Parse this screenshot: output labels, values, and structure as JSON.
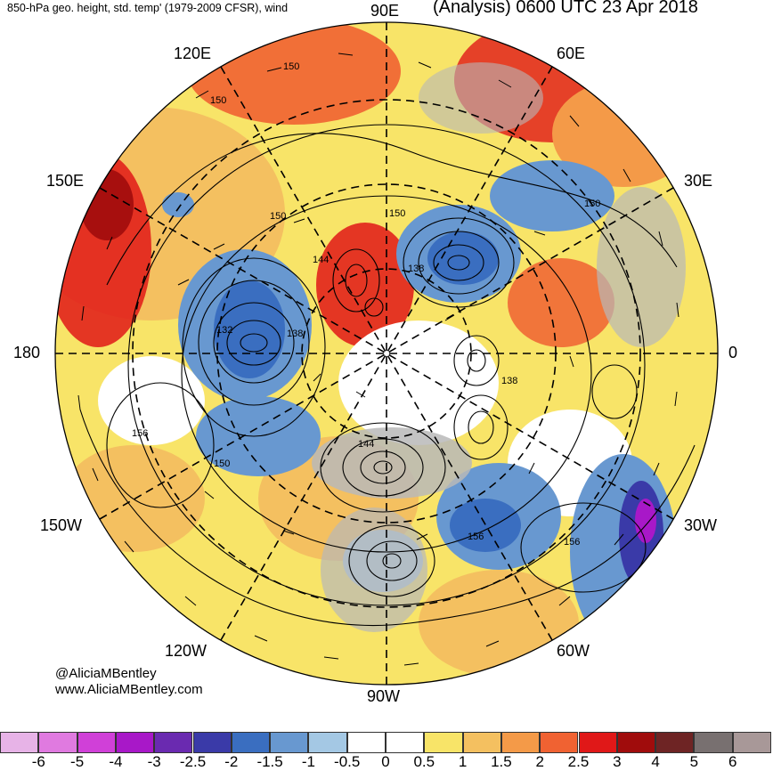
{
  "header": {
    "title_left": "850-hPa geo. height, std. temp' (1979-2009 CFSR), wind",
    "title_right": "(Analysis) 0600 UTC 23 Apr 2018"
  },
  "map": {
    "projection": "north-polar-stereographic",
    "longitude_labels": [
      "90E",
      "60E",
      "30E",
      "0",
      "30W",
      "60W",
      "90W",
      "120W",
      "150W",
      "180",
      "150E",
      "120E"
    ],
    "contour_labels": [
      "150",
      "150",
      "150",
      "150",
      "150",
      "144",
      "138",
      "132",
      "138",
      "138",
      "144",
      "150",
      "156",
      "156",
      "156"
    ],
    "colors": {
      "neutral": "#ffffff",
      "land_mask": "#b8b8b8",
      "contour": "#000000",
      "gridline": "#000000"
    }
  },
  "credit": {
    "line1": "@AliciaMBentley",
    "line2": "www.AliciaMBentley.com"
  },
  "colorbar": {
    "tick_labels": [
      "-6",
      "-5",
      "-4",
      "-3",
      "-2.5",
      "-2",
      "-1.5",
      "-1",
      "-0.5",
      "0",
      "0.5",
      "1",
      "1.5",
      "2",
      "2.5",
      "3",
      "4",
      "5",
      "6"
    ],
    "colors": [
      "#e7b3e7",
      "#e07ae0",
      "#d040d8",
      "#a818c8",
      "#6a2ab0",
      "#3a3aa8",
      "#3a6ec0",
      "#6898d0",
      "#a4c8e4",
      "#ffffff",
      "#ffffff",
      "#f8e468",
      "#f4c060",
      "#f49a48",
      "#f06232",
      "#e01818",
      "#a00c0c",
      "#6e2424",
      "#787070",
      "#a89898"
    ]
  }
}
